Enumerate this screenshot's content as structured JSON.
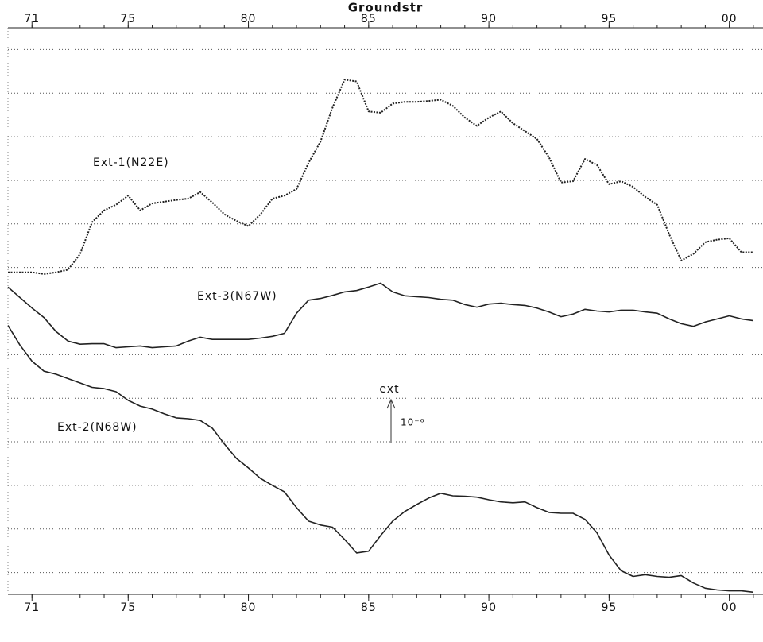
{
  "chart_data": {
    "type": "line",
    "title": "Groundstr",
    "x": [
      1970,
      1970.5,
      1971,
      1971.5,
      1972,
      1972.5,
      1973,
      1973.5,
      1974,
      1974.5,
      1975,
      1975.5,
      1976,
      1976.5,
      1977,
      1977.5,
      1978,
      1978.5,
      1979,
      1979.5,
      1980,
      1980.5,
      1981,
      1981.5,
      1982,
      1982.5,
      1983,
      1983.5,
      1984,
      1984.5,
      1985,
      1985.5,
      1986,
      1986.5,
      1987,
      1987.5,
      1988,
      1988.5,
      1989,
      1989.5,
      1990,
      1990.5,
      1991,
      1991.5,
      1992,
      1992.5,
      1993,
      1993.5,
      1994,
      1994.5,
      1995,
      1995.5,
      1996,
      1996.5,
      1997,
      1997.5,
      1998,
      1998.5,
      1999,
      1999.5,
      2000,
      2000.5,
      2001
    ],
    "series": [
      {
        "name": "Ext-1(N22E)",
        "color": "#222222",
        "dashed": true,
        "values": [
          6.89,
          6.89,
          6.89,
          6.85,
          6.89,
          6.95,
          7.31,
          8.04,
          8.31,
          8.44,
          8.65,
          8.31,
          8.47,
          8.51,
          8.55,
          8.58,
          8.73,
          8.49,
          8.22,
          8.07,
          7.95,
          8.22,
          8.58,
          8.65,
          8.8,
          9.4,
          9.89,
          10.67,
          11.31,
          11.27,
          10.58,
          10.55,
          10.76,
          10.8,
          10.8,
          10.82,
          10.85,
          10.71,
          10.44,
          10.25,
          10.44,
          10.58,
          10.31,
          10.13,
          9.95,
          9.53,
          8.95,
          8.98,
          9.49,
          9.35,
          8.91,
          8.98,
          8.85,
          8.62,
          8.44,
          7.76,
          7.16,
          7.31,
          7.58,
          7.64,
          7.67,
          7.35,
          7.35
        ]
      },
      {
        "name": "Ext-3(N67W)",
        "color": "#222222",
        "dashed": false,
        "values": [
          6.55,
          6.31,
          6.07,
          5.85,
          5.53,
          5.31,
          5.24,
          5.25,
          5.25,
          5.16,
          5.18,
          5.2,
          5.16,
          5.18,
          5.2,
          5.31,
          5.4,
          5.35,
          5.35,
          5.35,
          5.35,
          5.38,
          5.42,
          5.49,
          5.95,
          6.25,
          6.29,
          6.36,
          6.44,
          6.47,
          6.55,
          6.64,
          6.44,
          6.35,
          6.33,
          6.31,
          6.27,
          6.25,
          6.15,
          6.09,
          6.16,
          6.18,
          6.15,
          6.13,
          6.07,
          5.98,
          5.87,
          5.93,
          6.04,
          6.0,
          5.98,
          6.02,
          6.02,
          5.98,
          5.95,
          5.82,
          5.71,
          5.65,
          5.75,
          5.82,
          5.89,
          5.82,
          5.78
        ]
      },
      {
        "name": "Ext-2(N68W)",
        "color": "#222222",
        "dashed": false,
        "values": [
          5.67,
          5.22,
          4.85,
          4.62,
          4.55,
          4.45,
          4.35,
          4.25,
          4.22,
          4.15,
          3.95,
          3.82,
          3.75,
          3.64,
          3.55,
          3.53,
          3.49,
          3.31,
          2.95,
          2.62,
          2.4,
          2.16,
          2.0,
          1.85,
          1.49,
          1.18,
          1.09,
          1.04,
          0.76,
          0.45,
          0.49,
          0.85,
          1.18,
          1.4,
          1.56,
          1.71,
          1.82,
          1.76,
          1.75,
          1.73,
          1.67,
          1.62,
          1.6,
          1.62,
          1.49,
          1.38,
          1.36,
          1.36,
          1.22,
          0.91,
          0.4,
          0.04,
          -0.09,
          -0.05,
          -0.09,
          -0.11,
          -0.07,
          -0.24,
          -0.36,
          -0.4,
          -0.42,
          -0.42,
          -0.45
        ]
      }
    ],
    "xlim": [
      1970,
      2001.4
    ],
    "xticks": [
      {
        "value": 1971,
        "label": "71"
      },
      {
        "value": 1975,
        "label": "75"
      },
      {
        "value": 1980,
        "label": "80"
      },
      {
        "value": 1985,
        "label": "85"
      },
      {
        "value": 1990,
        "label": "90"
      },
      {
        "value": 1995,
        "label": "95"
      },
      {
        "value": 2000,
        "label": "00"
      }
    ],
    "xminorticks": [
      1971,
      1972,
      1973,
      1974,
      1975,
      1976,
      1977,
      1978,
      1979,
      1980,
      1981,
      1982,
      1983,
      1984,
      1985,
      1986,
      1987,
      1988,
      1989,
      1990,
      1991,
      1992,
      1993,
      1994,
      1995,
      1996,
      1997,
      1998,
      1999,
      2000,
      2001
    ],
    "ylim": [
      -0.5,
      12.5
    ],
    "yticks": [
      0,
      1,
      2,
      3,
      4,
      5,
      6,
      7,
      8,
      9,
      10,
      11,
      12
    ],
    "grid": true,
    "scale_label": "ext",
    "scale_unit": "10⁻⁶"
  }
}
